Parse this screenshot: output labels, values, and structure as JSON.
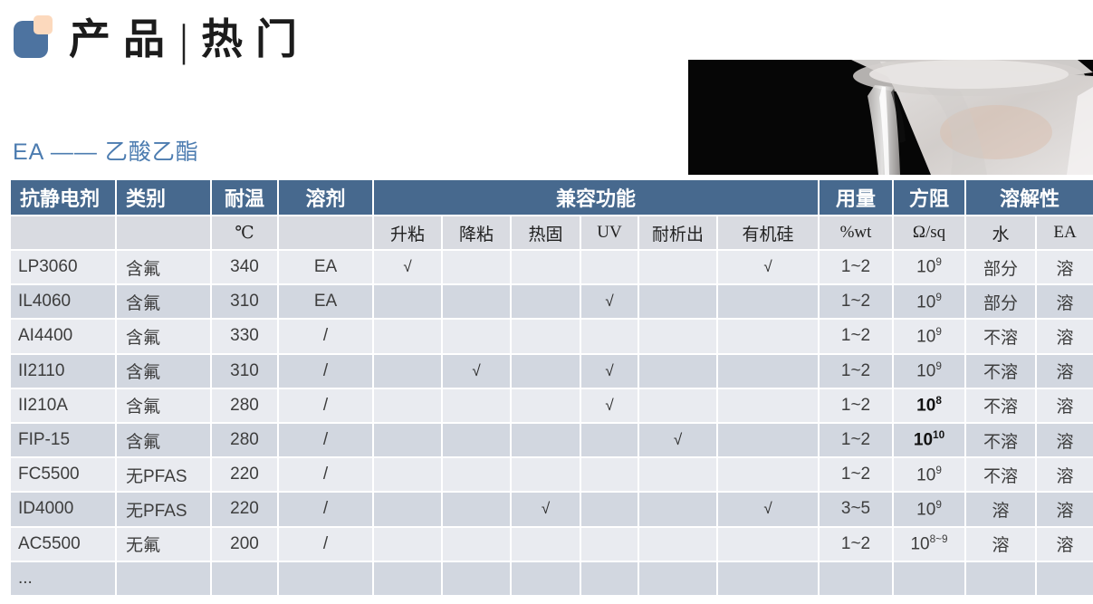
{
  "page": {
    "title_left": "产品",
    "title_separator": "|",
    "title_right": "热门",
    "subtitle": "EA —— 乙酸乙酯"
  },
  "colors": {
    "header_bg": "#47698e",
    "row_light": "#e9ebf0",
    "row_dark": "#d2d7e0",
    "subheader_bg": "#d9dbe1",
    "accent_blue": "#4c7cb0",
    "logo_blue": "#4d73a0",
    "logo_peach": "#fcd9bd"
  },
  "table": {
    "header": {
      "col_agent": "抗静电剂",
      "col_category": "类别",
      "col_temp": "耐温",
      "col_solvent": "溶剂",
      "col_compat_group": "兼容功能",
      "col_dosage": "用量",
      "col_resistance": "方阻",
      "col_solubility_group": "溶解性"
    },
    "subheader": {
      "temp_unit": "℃",
      "compat": [
        "升粘",
        "降粘",
        "热固",
        "UV",
        "耐析出",
        "有机硅"
      ],
      "dosage_unit": "%wt",
      "resistance_unit": "Ω/sq",
      "solubility": [
        "水",
        "EA"
      ]
    },
    "rows": [
      {
        "agent": "LP3060",
        "category": "含氟",
        "temp": "340",
        "solvent": "EA",
        "compat": [
          "√",
          "",
          "",
          "",
          "",
          "√"
        ],
        "dosage": "1~2",
        "resistance": {
          "base": "10",
          "sup": "9",
          "bold": false
        },
        "water": "部分",
        "ea": "溶"
      },
      {
        "agent": "IL4060",
        "category": "含氟",
        "temp": "310",
        "solvent": "EA",
        "compat": [
          "",
          "",
          "",
          "√",
          "",
          ""
        ],
        "dosage": "1~2",
        "resistance": {
          "base": "10",
          "sup": "9",
          "bold": false
        },
        "water": "部分",
        "ea": "溶"
      },
      {
        "agent": "AI4400",
        "category": "含氟",
        "temp": "330",
        "solvent": "/",
        "compat": [
          "",
          "",
          "",
          "",
          "",
          ""
        ],
        "dosage": "1~2",
        "resistance": {
          "base": "10",
          "sup": "9",
          "bold": false
        },
        "water": "不溶",
        "ea": "溶"
      },
      {
        "agent": "II2110",
        "category": "含氟",
        "temp": "310",
        "solvent": "/",
        "compat": [
          "",
          "√",
          "",
          "√",
          "",
          ""
        ],
        "dosage": "1~2",
        "resistance": {
          "base": "10",
          "sup": "9",
          "bold": false
        },
        "water": "不溶",
        "ea": "溶"
      },
      {
        "agent": "II210A",
        "category": "含氟",
        "temp": "280",
        "solvent": "/",
        "compat": [
          "",
          "",
          "",
          "√",
          "",
          ""
        ],
        "dosage": "1~2",
        "resistance": {
          "base": "10",
          "sup": "8",
          "bold": true
        },
        "water": "不溶",
        "ea": "溶"
      },
      {
        "agent": "FIP-15",
        "category": "含氟",
        "temp": "280",
        "solvent": "/",
        "compat": [
          "",
          "",
          "",
          "",
          "√",
          ""
        ],
        "dosage": "1~2",
        "resistance": {
          "base": "10",
          "sup": "10",
          "bold": true
        },
        "water": "不溶",
        "ea": "溶"
      },
      {
        "agent": "FC5500",
        "category": "无PFAS",
        "temp": "220",
        "solvent": "/",
        "compat": [
          "",
          "",
          "",
          "",
          "",
          ""
        ],
        "dosage": "1~2",
        "resistance": {
          "base": "10",
          "sup": "9",
          "bold": false
        },
        "water": "不溶",
        "ea": "溶"
      },
      {
        "agent": "ID4000",
        "category": "无PFAS",
        "temp": "220",
        "solvent": "/",
        "compat": [
          "",
          "",
          "√",
          "",
          "",
          "√"
        ],
        "dosage": "3~5",
        "resistance": {
          "base": "10",
          "sup": "9",
          "bold": false
        },
        "water": "溶",
        "ea": "溶"
      },
      {
        "agent": "AC5500",
        "category": "无氟",
        "temp": "200",
        "solvent": "/",
        "compat": [
          "",
          "",
          "",
          "",
          "",
          ""
        ],
        "dosage": "1~2",
        "resistance": {
          "base": "10",
          "sup": "8~9",
          "bold": false
        },
        "water": "溶",
        "ea": "溶"
      }
    ],
    "ellipsis_row": "..."
  }
}
